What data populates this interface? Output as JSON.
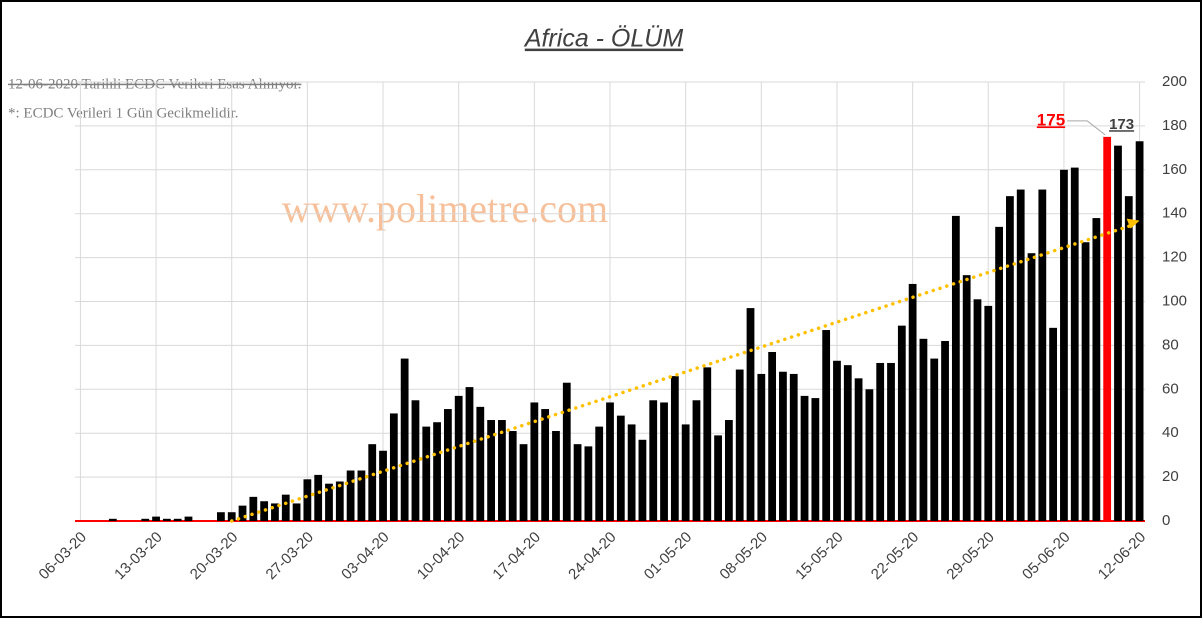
{
  "chart_data": {
    "type": "bar",
    "title": "Africa - ÖLÜM",
    "notes": [
      "12-06-2020 Tarihli ECDC Verileri Esas Alınıyor.",
      "*: ECDC Verileri 1 Gün Gecikmelidir."
    ],
    "watermark": "www.polimetre.com",
    "categories": [
      "06-03-20",
      null,
      null,
      null,
      null,
      null,
      null,
      "13-03-20",
      null,
      null,
      null,
      null,
      null,
      null,
      "20-03-20",
      null,
      null,
      null,
      null,
      null,
      null,
      "27-03-20",
      null,
      null,
      null,
      null,
      null,
      null,
      "03-04-20",
      null,
      null,
      null,
      null,
      null,
      null,
      "10-04-20",
      null,
      null,
      null,
      null,
      null,
      null,
      "17-04-20",
      null,
      null,
      null,
      null,
      null,
      null,
      "24-04-20",
      null,
      null,
      null,
      null,
      null,
      null,
      "01-05-20",
      null,
      null,
      null,
      null,
      null,
      null,
      "08-05-20",
      null,
      null,
      null,
      null,
      null,
      null,
      "15-05-20",
      null,
      null,
      null,
      null,
      null,
      null,
      "22-05-20",
      null,
      null,
      null,
      null,
      null,
      null,
      "29-05-20",
      null,
      null,
      null,
      null,
      null,
      null,
      "05-06-20",
      null,
      null,
      null,
      null,
      null,
      null,
      "12-06-20"
    ],
    "values": [
      0,
      0,
      0,
      1,
      0,
      0,
      1,
      2,
      1,
      1,
      2,
      0,
      0,
      4,
      4,
      7,
      11,
      9,
      8,
      12,
      8,
      19,
      21,
      17,
      18,
      23,
      23,
      35,
      32,
      49,
      74,
      55,
      43,
      45,
      51,
      57,
      61,
      52,
      46,
      46,
      41,
      35,
      54,
      51,
      41,
      63,
      35,
      34,
      43,
      54,
      48,
      44,
      37,
      55,
      54,
      66,
      44,
      55,
      70,
      39,
      46,
      69,
      97,
      67,
      77,
      68,
      67,
      57,
      56,
      87,
      73,
      71,
      65,
      60,
      72,
      72,
      89,
      108,
      83,
      74,
      82,
      139,
      112,
      101,
      98,
      134,
      148,
      151,
      122,
      151,
      88,
      160,
      161,
      127,
      138,
      175,
      171,
      148,
      173
    ],
    "color": "#000000",
    "highlight": {
      "index": 95,
      "color": "#ff0000"
    },
    "labeled": [
      95,
      98
    ],
    "trendline": {
      "index": [
        14,
        98
      ],
      "values": [
        0,
        135
      ],
      "color": "#ffc000"
    },
    "ylim": [
      0,
      200
    ],
    "yticks": [
      0,
      20,
      40,
      60,
      80,
      100,
      120,
      140,
      160,
      180,
      200
    ],
    "grid": true
  }
}
